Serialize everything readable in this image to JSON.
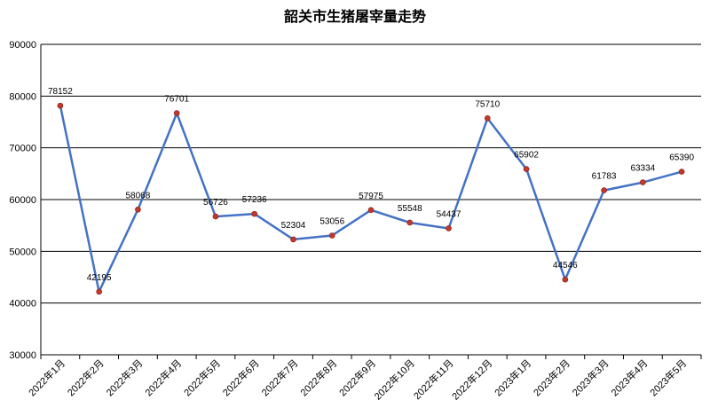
{
  "chart_data": {
    "type": "line",
    "title": "韶关市生猪屠宰量走势",
    "xlabel": "",
    "ylabel": "",
    "ylim": [
      30000,
      90000
    ],
    "yticks": [
      30000,
      40000,
      50000,
      60000,
      70000,
      80000,
      90000
    ],
    "grid": true,
    "legend": "none",
    "line_color": "#4472C4",
    "marker_color": "#C0392B",
    "categories": [
      "2022年1月",
      "2022年2月",
      "2022年3月",
      "2022年4月",
      "2022年5月",
      "2022年6月",
      "2022年7月",
      "2022年8月",
      "2022年9月",
      "2022年10月",
      "2022年11月",
      "2022年12月",
      "2023年1月",
      "2023年2月",
      "2023年3月",
      "2023年4月",
      "2023年5月"
    ],
    "series": [
      {
        "values": [
          78152,
          42195,
          58068,
          76701,
          56726,
          57236,
          52304,
          53056,
          57975,
          55548,
          54437,
          75710,
          65902,
          44546,
          61783,
          63334,
          65390
        ]
      }
    ]
  }
}
